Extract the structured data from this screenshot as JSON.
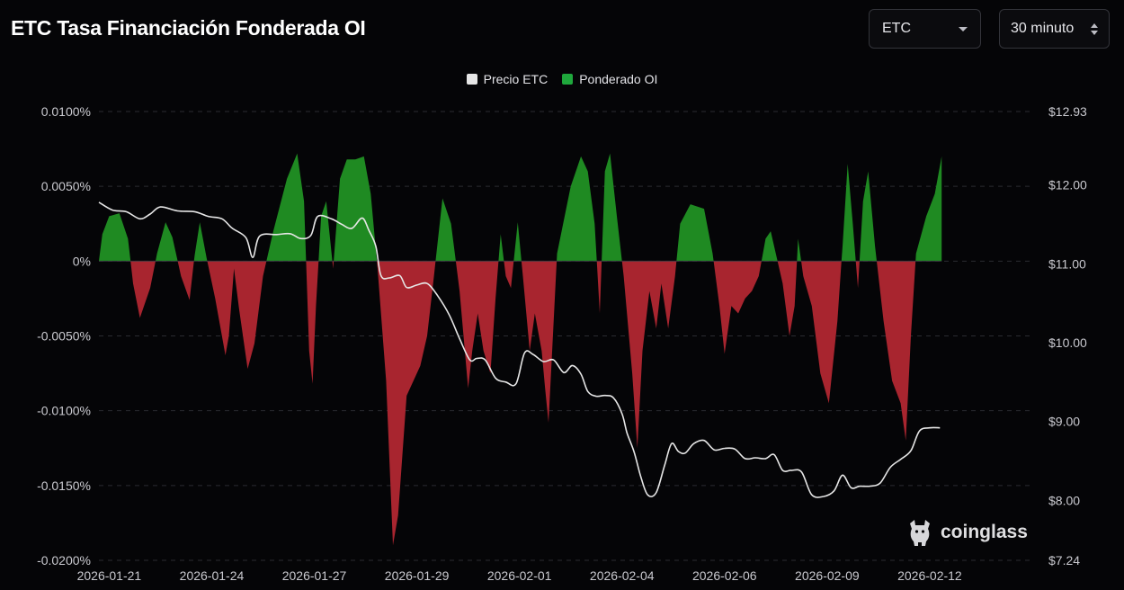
{
  "header": {
    "title": "ETC Tasa Financiación Fonderada OI",
    "symbol_select": "ETC",
    "interval_select": "30 minuto"
  },
  "watermark": "coinglass",
  "icons": {
    "symbol_caret": "chevron-down-icon",
    "interval_caret": "up-down-chevron-icon",
    "watermark_logo": "coinglass-bull-icon"
  },
  "chart_data": {
    "type": "area",
    "legend": [
      {
        "name": "Precio ETC",
        "color": "#e6e6e6"
      },
      {
        "name": "Ponderado OI",
        "color": "#1fa83c"
      }
    ],
    "left_axis": {
      "ticks": [
        {
          "v": 0.01,
          "label": "0.0100%"
        },
        {
          "v": 0.005,
          "label": "0.0050%"
        },
        {
          "v": 0,
          "label": "0%"
        },
        {
          "v": -0.005,
          "label": "-0.0050%"
        },
        {
          "v": -0.01,
          "label": "-0.0100%"
        },
        {
          "v": -0.015,
          "label": "-0.0150%"
        },
        {
          "v": -0.02,
          "label": "-0.0200%"
        }
      ],
      "range": [
        -0.02,
        0.01
      ]
    },
    "right_axis": {
      "ticks": [
        {
          "v": 12.93,
          "label": "$12.93"
        },
        {
          "v": 12.0,
          "label": "$12.00"
        },
        {
          "v": 11.0,
          "label": "$11.00"
        },
        {
          "v": 10.0,
          "label": "$10.00"
        },
        {
          "v": 9.0,
          "label": "$9.00"
        },
        {
          "v": 8.0,
          "label": "$8.00"
        },
        {
          "v": 7.24,
          "label": "$7.24"
        }
      ],
      "range": [
        7.24,
        12.93
      ]
    },
    "x_axis": {
      "ticks": [
        {
          "x": 0.0,
          "label": "2026-01-21"
        },
        {
          "x": 3.0,
          "label": "2026-01-24"
        },
        {
          "x": 6.0,
          "label": "2026-01-27"
        },
        {
          "x": 9.0,
          "label": "2026-01-29"
        },
        {
          "x": 12.0,
          "label": "2026-02-01"
        },
        {
          "x": 15.0,
          "label": "2026-02-04"
        },
        {
          "x": 18.0,
          "label": "2026-02-06"
        },
        {
          "x": 21.0,
          "label": "2026-02-09"
        },
        {
          "x": 24.0,
          "label": "2026-02-12"
        }
      ],
      "range": [
        -0.3,
        27.0
      ]
    },
    "grid": true,
    "positive_color": "#1f8a22",
    "negative_color": "#a8252f",
    "funding_rate": [
      [
        -0.3,
        0.0
      ],
      [
        -0.2,
        0.0018
      ],
      [
        0.0,
        0.003
      ],
      [
        0.3,
        0.0032
      ],
      [
        0.55,
        0.0015
      ],
      [
        0.7,
        -0.0015
      ],
      [
        0.9,
        -0.0038
      ],
      [
        1.2,
        -0.0018
      ],
      [
        1.4,
        0.0005
      ],
      [
        1.65,
        0.0026
      ],
      [
        1.85,
        0.0016
      ],
      [
        2.1,
        -0.001
      ],
      [
        2.35,
        -0.0026
      ],
      [
        2.5,
        0.0004
      ],
      [
        2.65,
        0.0026
      ],
      [
        2.85,
        0.0002
      ],
      [
        3.1,
        -0.0025
      ],
      [
        3.4,
        -0.0063
      ],
      [
        3.5,
        -0.005
      ],
      [
        3.65,
        -0.0005
      ],
      [
        3.8,
        -0.0032
      ],
      [
        4.05,
        -0.0072
      ],
      [
        4.25,
        -0.0055
      ],
      [
        4.5,
        -0.001
      ],
      [
        4.8,
        0.002
      ],
      [
        5.2,
        0.0055
      ],
      [
        5.5,
        0.0072
      ],
      [
        5.7,
        0.004
      ],
      [
        5.85,
        -0.006
      ],
      [
        5.95,
        -0.0082
      ],
      [
        6.05,
        -0.003
      ],
      [
        6.2,
        0.003
      ],
      [
        6.35,
        0.004
      ],
      [
        6.55,
        -0.0005
      ],
      [
        6.75,
        0.0055
      ],
      [
        6.95,
        0.0068
      ],
      [
        7.2,
        0.0068
      ],
      [
        7.45,
        0.007
      ],
      [
        7.65,
        0.0045
      ],
      [
        7.85,
        -0.0005
      ],
      [
        8.1,
        -0.008
      ],
      [
        8.3,
        -0.019
      ],
      [
        8.45,
        -0.017
      ],
      [
        8.7,
        -0.009
      ],
      [
        9.1,
        -0.007
      ],
      [
        9.3,
        -0.005
      ],
      [
        9.5,
        -0.001
      ],
      [
        9.75,
        0.0042
      ],
      [
        10.0,
        0.0025
      ],
      [
        10.25,
        -0.002
      ],
      [
        10.5,
        -0.0085
      ],
      [
        10.62,
        -0.006
      ],
      [
        10.78,
        -0.0035
      ],
      [
        10.95,
        -0.006
      ],
      [
        11.15,
        -0.0075
      ],
      [
        11.3,
        -0.0025
      ],
      [
        11.45,
        0.0018
      ],
      [
        11.6,
        -0.001
      ],
      [
        11.75,
        -0.0018
      ],
      [
        11.95,
        0.0026
      ],
      [
        12.1,
        -0.001
      ],
      [
        12.3,
        -0.006
      ],
      [
        12.45,
        -0.0035
      ],
      [
        12.65,
        -0.006
      ],
      [
        12.75,
        -0.0085
      ],
      [
        12.85,
        -0.0108
      ],
      [
        12.98,
        -0.005
      ],
      [
        13.1,
        0.0005
      ],
      [
        13.5,
        0.005
      ],
      [
        13.8,
        0.007
      ],
      [
        14.0,
        0.006
      ],
      [
        14.2,
        0.0025
      ],
      [
        14.35,
        -0.0035
      ],
      [
        14.5,
        0.006
      ],
      [
        14.65,
        0.0072
      ],
      [
        14.85,
        0.003
      ],
      [
        15.05,
        -0.001
      ],
      [
        15.3,
        -0.0075
      ],
      [
        15.45,
        -0.0125
      ],
      [
        15.6,
        -0.006
      ],
      [
        15.8,
        -0.002
      ],
      [
        16.0,
        -0.0045
      ],
      [
        16.15,
        -0.0015
      ],
      [
        16.35,
        -0.0045
      ],
      [
        16.55,
        -0.001
      ],
      [
        16.7,
        0.0025
      ],
      [
        17.0,
        0.0038
      ],
      [
        17.4,
        0.0035
      ],
      [
        17.65,
        0.0005
      ],
      [
        17.85,
        -0.003
      ],
      [
        18.0,
        -0.0062
      ],
      [
        18.2,
        -0.003
      ],
      [
        18.4,
        -0.0035
      ],
      [
        18.6,
        -0.0025
      ],
      [
        18.8,
        -0.002
      ],
      [
        19.0,
        -0.001
      ],
      [
        19.2,
        0.0015
      ],
      [
        19.35,
        0.002
      ],
      [
        19.5,
        0.0005
      ],
      [
        19.7,
        -0.0015
      ],
      [
        19.9,
        -0.005
      ],
      [
        20.05,
        -0.003
      ],
      [
        20.15,
        0.0015
      ],
      [
        20.3,
        -0.001
      ],
      [
        20.55,
        -0.003
      ],
      [
        20.8,
        -0.0075
      ],
      [
        21.05,
        -0.0095
      ],
      [
        21.3,
        -0.004
      ],
      [
        21.45,
        0.001
      ],
      [
        21.6,
        0.0065
      ],
      [
        21.75,
        0.0025
      ],
      [
        21.9,
        -0.0018
      ],
      [
        22.05,
        0.004
      ],
      [
        22.2,
        0.006
      ],
      [
        22.4,
        0.001
      ],
      [
        22.65,
        -0.004
      ],
      [
        22.9,
        -0.008
      ],
      [
        23.15,
        -0.0095
      ],
      [
        23.3,
        -0.012
      ],
      [
        23.45,
        -0.005
      ],
      [
        23.6,
        0.0005
      ],
      [
        23.9,
        0.003
      ],
      [
        24.15,
        0.0045
      ],
      [
        24.35,
        0.007
      ]
    ],
    "price": [
      [
        -0.3,
        11.78
      ],
      [
        0.1,
        11.68
      ],
      [
        0.5,
        11.66
      ],
      [
        0.9,
        11.57
      ],
      [
        1.2,
        11.63
      ],
      [
        1.5,
        11.72
      ],
      [
        2.0,
        11.67
      ],
      [
        2.5,
        11.66
      ],
      [
        2.9,
        11.6
      ],
      [
        3.3,
        11.57
      ],
      [
        3.6,
        11.45
      ],
      [
        4.0,
        11.33
      ],
      [
        4.2,
        11.08
      ],
      [
        4.4,
        11.35
      ],
      [
        4.9,
        11.37
      ],
      [
        5.3,
        11.38
      ],
      [
        5.6,
        11.32
      ],
      [
        5.9,
        11.36
      ],
      [
        6.1,
        11.6
      ],
      [
        6.5,
        11.57
      ],
      [
        6.8,
        11.5
      ],
      [
        7.1,
        11.45
      ],
      [
        7.4,
        11.58
      ],
      [
        7.6,
        11.42
      ],
      [
        7.8,
        11.22
      ],
      [
        7.95,
        10.85
      ],
      [
        8.2,
        10.82
      ],
      [
        8.5,
        10.85
      ],
      [
        8.7,
        10.7
      ],
      [
        9.0,
        10.73
      ],
      [
        9.3,
        10.75
      ],
      [
        9.6,
        10.6
      ],
      [
        9.95,
        10.35
      ],
      [
        10.25,
        10.05
      ],
      [
        10.55,
        9.78
      ],
      [
        10.75,
        9.8
      ],
      [
        11.0,
        9.78
      ],
      [
        11.3,
        9.55
      ],
      [
        11.6,
        9.5
      ],
      [
        11.9,
        9.48
      ],
      [
        12.15,
        9.87
      ],
      [
        12.4,
        9.85
      ],
      [
        12.7,
        9.76
      ],
      [
        13.0,
        9.78
      ],
      [
        13.3,
        9.62
      ],
      [
        13.55,
        9.71
      ],
      [
        13.8,
        9.6
      ],
      [
        14.0,
        9.38
      ],
      [
        14.25,
        9.32
      ],
      [
        14.5,
        9.33
      ],
      [
        14.75,
        9.3
      ],
      [
        15.0,
        9.1
      ],
      [
        15.15,
        8.85
      ],
      [
        15.35,
        8.62
      ],
      [
        15.55,
        8.3
      ],
      [
        15.75,
        8.07
      ],
      [
        16.0,
        8.1
      ],
      [
        16.25,
        8.45
      ],
      [
        16.45,
        8.72
      ],
      [
        16.65,
        8.62
      ],
      [
        16.85,
        8.6
      ],
      [
        17.1,
        8.72
      ],
      [
        17.4,
        8.76
      ],
      [
        17.7,
        8.64
      ],
      [
        18.0,
        8.66
      ],
      [
        18.3,
        8.65
      ],
      [
        18.6,
        8.53
      ],
      [
        18.9,
        8.54
      ],
      [
        19.2,
        8.53
      ],
      [
        19.45,
        8.58
      ],
      [
        19.7,
        8.38
      ],
      [
        19.95,
        8.38
      ],
      [
        20.25,
        8.36
      ],
      [
        20.55,
        8.07
      ],
      [
        20.9,
        8.05
      ],
      [
        21.2,
        8.12
      ],
      [
        21.45,
        8.32
      ],
      [
        21.7,
        8.16
      ],
      [
        21.95,
        8.18
      ],
      [
        22.25,
        8.18
      ],
      [
        22.55,
        8.22
      ],
      [
        22.85,
        8.42
      ],
      [
        23.15,
        8.52
      ],
      [
        23.45,
        8.63
      ],
      [
        23.7,
        8.88
      ],
      [
        24.0,
        8.92
      ],
      [
        24.3,
        8.92
      ]
    ]
  }
}
